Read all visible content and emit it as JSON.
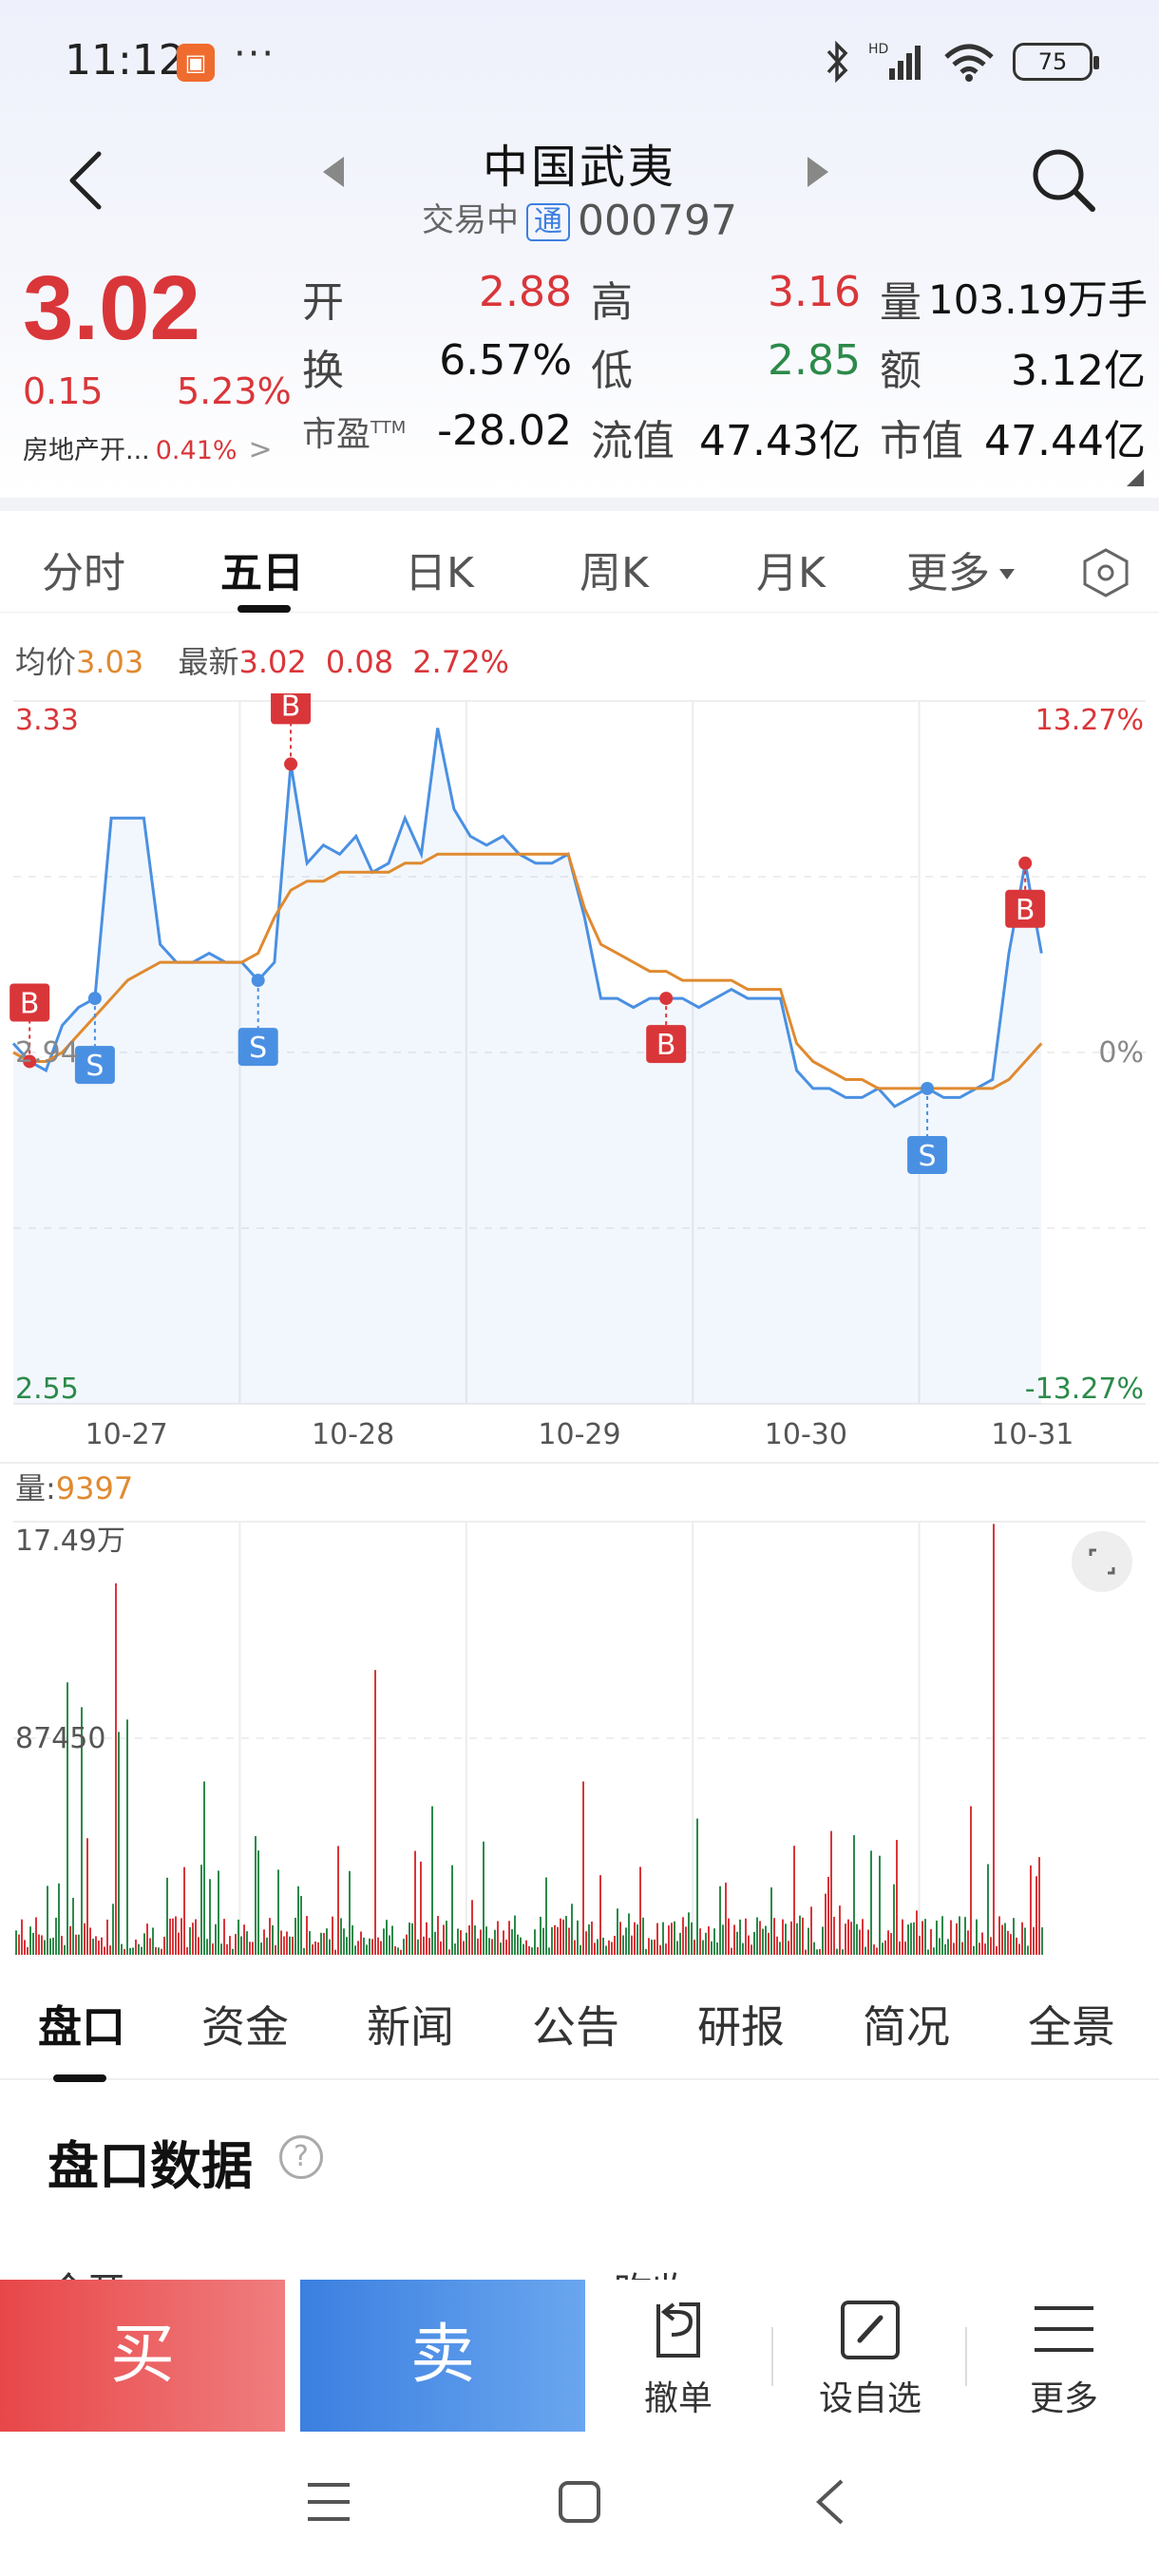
{
  "status_bar": {
    "time": "11:12",
    "dots": "···",
    "battery": "75",
    "hd": "HD"
  },
  "header": {
    "name": "中国武夷",
    "status": "交易中",
    "tong": "通",
    "code": "000797"
  },
  "quote": {
    "price": "3.02",
    "change": "0.15",
    "change_pct": "5.23%",
    "sector_name": "房地产开...",
    "sector_pct": "0.41%",
    "open_label": "开",
    "open": "2.88",
    "high_label": "高",
    "high": "3.16",
    "volume_label": "量",
    "volume": "103.19万手",
    "turnover_label": "换",
    "turnover": "6.57%",
    "low_label": "低",
    "low": "2.85",
    "amount_label": "额",
    "amount": "3.12亿",
    "pe_label": "市盈",
    "pe_sup": "TTM",
    "pe": "-28.02",
    "float_label": "流值",
    "float_value": "47.43亿",
    "mcap_label": "市值",
    "mcap": "47.44亿"
  },
  "chart_tabs": [
    "分时",
    "五日",
    "日K",
    "周K",
    "月K",
    "更多"
  ],
  "avg_row": {
    "avg_label": "均价",
    "avg": "3.03",
    "latest_label": "最新",
    "latest": "3.02",
    "latest_change": "0.08",
    "latest_pct": "2.72%"
  },
  "chart_data": [
    {
      "type": "line",
      "x_ticks": [
        "10-27",
        "10-28",
        "10-29",
        "10-30",
        "10-31"
      ],
      "y_left": {
        "top": "3.33",
        "mid": "2.94",
        "bottom": "2.55"
      },
      "y_right": {
        "top": "13.27%",
        "mid": "0%",
        "bottom": "-13.27%"
      },
      "ylim": [
        2.55,
        3.33
      ],
      "series": [
        {
          "values": [
            2.95,
            2.93,
            2.92,
            2.97,
            2.99,
            3.0,
            3.2,
            3.2,
            3.2,
            3.06,
            3.04,
            3.04,
            3.05,
            3.04,
            3.04,
            3.02,
            3.04,
            3.26,
            3.15,
            3.17,
            3.16,
            3.18,
            3.14,
            3.15,
            3.2,
            3.16,
            3.3,
            3.21,
            3.18,
            3.17,
            3.18,
            3.16,
            3.15,
            3.15,
            3.16,
            3.09,
            3.0,
            3.0,
            2.99,
            3.0,
            3.0,
            3.0,
            2.99,
            3.0,
            3.01,
            3.0,
            3.0,
            3.0,
            2.92,
            2.9,
            2.9,
            2.89,
            2.89,
            2.9,
            2.88,
            2.89,
            2.9,
            2.89,
            2.89,
            2.9,
            2.91,
            3.05,
            3.15,
            3.05
          ]
        },
        {
          "values": [
            2.94,
            2.93,
            2.93,
            2.94,
            2.96,
            2.98,
            3.0,
            3.02,
            3.03,
            3.04,
            3.04,
            3.04,
            3.04,
            3.04,
            3.04,
            3.05,
            3.09,
            3.12,
            3.13,
            3.13,
            3.14,
            3.14,
            3.14,
            3.14,
            3.15,
            3.15,
            3.16,
            3.16,
            3.16,
            3.16,
            3.16,
            3.16,
            3.16,
            3.16,
            3.16,
            3.1,
            3.06,
            3.05,
            3.04,
            3.03,
            3.03,
            3.02,
            3.02,
            3.02,
            3.02,
            3.01,
            3.01,
            3.01,
            2.95,
            2.93,
            2.92,
            2.91,
            2.91,
            2.9,
            2.9,
            2.9,
            2.9,
            2.9,
            2.9,
            2.9,
            2.9,
            2.91,
            2.93,
            2.95
          ]
        }
      ],
      "trade_markers": [
        "B",
        "S",
        "S",
        "B",
        "B",
        "S",
        "B"
      ]
    },
    {
      "type": "bar",
      "x_ticks": [
        "10-27",
        "10-28",
        "10-29",
        "10-30",
        "10-31"
      ],
      "y_labels": {
        "top": "17.49万",
        "mid": "87450"
      },
      "ylim": [
        0,
        174900
      ],
      "volume_label": "量",
      "volume_value": "9397"
    }
  ],
  "info_tabs": [
    "盘口",
    "资金",
    "新闻",
    "公告",
    "研报",
    "简况",
    "全景"
  ],
  "section": {
    "title": "盘口数据",
    "help": "?",
    "peek_left": "今开",
    "peek_right": "昨收"
  },
  "actions": {
    "buy": "买",
    "sell": "卖",
    "cancel": "撤单",
    "watch": "设自选",
    "more": "更多"
  },
  "colors": {
    "up": "#d9363a",
    "down": "#2c8a4a",
    "price_line": "#4a90e2",
    "avg_line": "#e08a30",
    "buy": "#e84749",
    "sell": "#3b7fe0"
  }
}
